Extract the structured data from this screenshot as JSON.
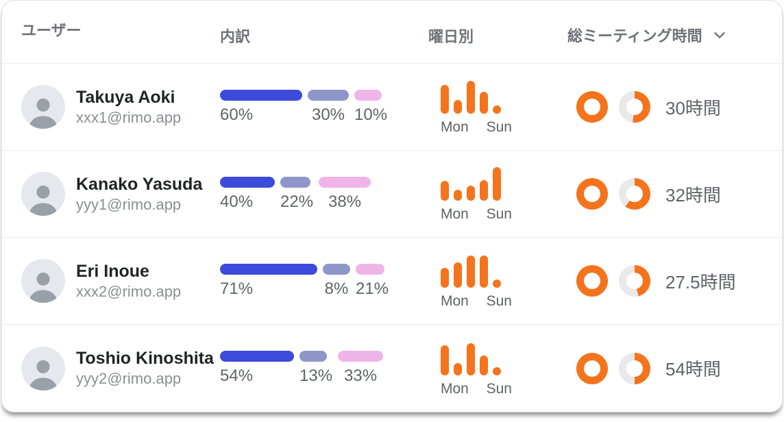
{
  "header": {
    "user": "ユーザー",
    "breakdown": "内訳",
    "weekday": "曜日別",
    "total": "総ミーティング時間",
    "sort_icon": "chevron-down-icon"
  },
  "weekday_axis": {
    "first": "Mon",
    "last": "Sun"
  },
  "colors": {
    "bar_blue": "#3C4BDB",
    "bar_purple": "#8E96C9",
    "bar_pink": "#F0B5E8",
    "orange": "#F5731C",
    "donut_track": "#E9E9E9"
  },
  "rows": [
    {
      "name": "Takuya Aoki",
      "email": "xxx1@rimo.app",
      "breakdown": {
        "labels": [
          "60%",
          "30%",
          "10%"
        ],
        "values": [
          60,
          30,
          10
        ]
      },
      "weekday_values": [
        80,
        38,
        92,
        62,
        20
      ],
      "donut_left_pct": 100,
      "donut_right_pct": 52,
      "total_label": "30時間"
    },
    {
      "name": "Kanako Yasuda",
      "email": "yyy1@rimo.app",
      "breakdown": {
        "labels": [
          "40%",
          "22%",
          "38%"
        ],
        "values": [
          40,
          22,
          38
        ]
      },
      "weekday_values": [
        55,
        30,
        42,
        58,
        95
      ],
      "donut_left_pct": 100,
      "donut_right_pct": 60,
      "total_label": "32時間"
    },
    {
      "name": "Eri Inoue",
      "email": "xxx2@rimo.app",
      "breakdown": {
        "labels": [
          "71%",
          "8%",
          "21%"
        ],
        "values": [
          71,
          8,
          21
        ]
      },
      "weekday_values": [
        55,
        72,
        90,
        90,
        18
      ],
      "donut_left_pct": 100,
      "donut_right_pct": 46,
      "total_label": "27.5時間"
    },
    {
      "name": "Toshio Kinoshita",
      "email": "yyy2@rimo.app",
      "breakdown": {
        "labels": [
          "54%",
          "13%",
          "33%"
        ],
        "values": [
          54,
          13,
          33
        ]
      },
      "weekday_values": [
        85,
        35,
        90,
        55,
        20
      ],
      "donut_left_pct": 100,
      "donut_right_pct": 50,
      "total_label": "54時間"
    }
  ]
}
